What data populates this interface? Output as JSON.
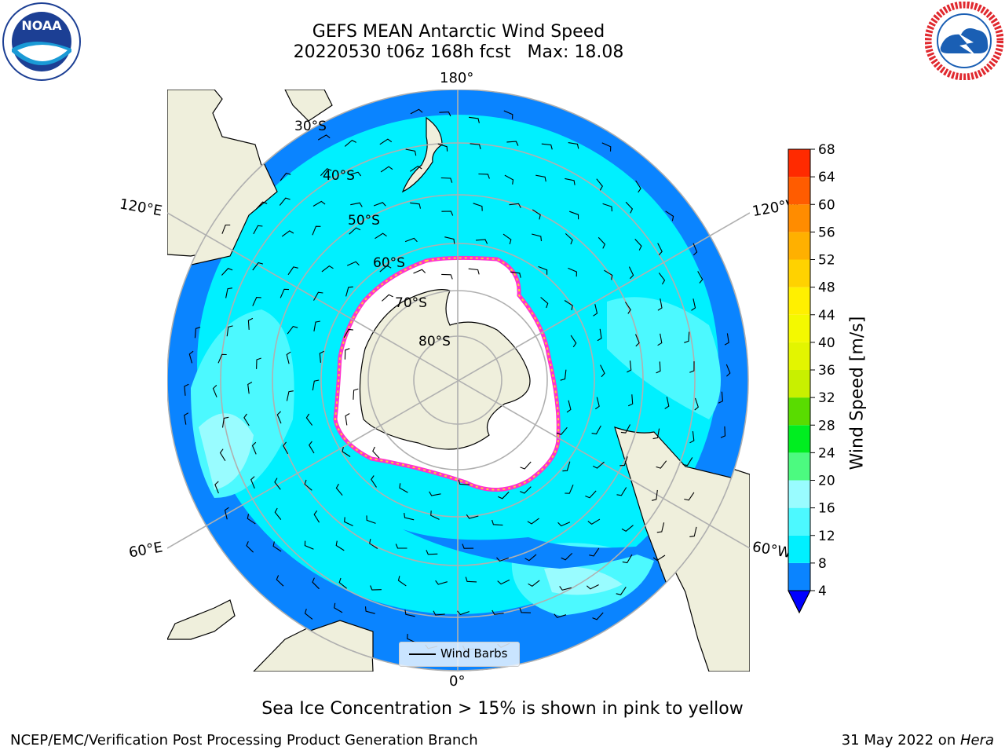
{
  "title": {
    "line1": "GEFS MEAN Antarctic Wind Speed",
    "line2": "20220530 t06z 168h fcst   Max: 18.08"
  },
  "map": {
    "projection": "south-polar-stereographic",
    "longitude_labels": {
      "top": "180°",
      "bottom": "0°",
      "left_upper": "120°E",
      "left_lower": "60°E",
      "right_upper": "120°W",
      "right_lower": "60°W"
    },
    "latitude_labels": [
      "30°S",
      "40°S",
      "50°S",
      "60°S",
      "70°S",
      "80°S"
    ],
    "colors": {
      "land": "#efefdc",
      "ocean_4_8": "#0a84ff",
      "ocean_8_12": "#00f0ff",
      "ocean_12_16": "#4cf9ff",
      "ocean_16_20": "#99fcff",
      "sea_ice": "#ffffff",
      "ice_edge_pink": "#ff33cc",
      "ice_edge_yellow": "#ffcc33",
      "grid": "#b0b0b0"
    }
  },
  "legend": {
    "label": "Wind Barbs",
    "icon": "line-icon"
  },
  "colorbar": {
    "label": "Wind Speed [m/s]",
    "ticks": [
      "4",
      "8",
      "12",
      "16",
      "20",
      "24",
      "28",
      "32",
      "36",
      "40",
      "44",
      "48",
      "52",
      "56",
      "60",
      "64",
      "68"
    ],
    "colors": [
      "#0a84ff",
      "#00f0ff",
      "#4cf9ff",
      "#99fcff",
      "#4cfa80",
      "#00ee20",
      "#59dc00",
      "#c8f000",
      "#e3f500",
      "#f4f900",
      "#fff000",
      "#ffd200",
      "#ffb000",
      "#ff8c00",
      "#ff5c00",
      "#ff2a00"
    ],
    "extend_color": "#0000ff"
  },
  "footer": {
    "note": "Sea Ice Concentration > 15% is shown in pink to yellow",
    "credit": "NCEP/EMC/Verification Post Processing Product Generation Branch",
    "date_prefix": "31 May 2022 on ",
    "machine": "Hera"
  },
  "logos": {
    "left": {
      "text": "NOAA",
      "icon": "noaa-logo"
    },
    "right": {
      "text": "NATIONAL WEATHER SERVICE",
      "icon": "nws-logo"
    }
  }
}
